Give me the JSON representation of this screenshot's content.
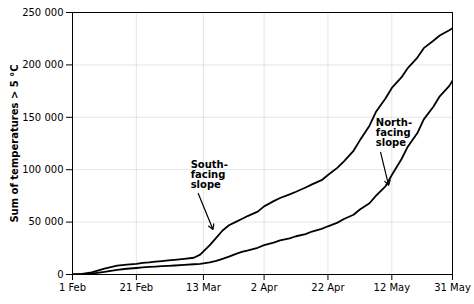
{
  "chart_data": {
    "type": "line",
    "ylabel": "Sum of temperatures > 5 °C",
    "x": [
      0,
      3,
      6,
      10,
      14,
      17,
      20,
      22,
      24,
      26,
      28,
      30,
      32,
      35,
      38,
      40,
      41,
      43,
      45,
      47,
      49,
      51,
      53,
      55,
      58,
      60,
      63,
      65,
      68,
      70,
      73,
      75,
      78,
      80,
      83,
      85,
      88,
      90,
      93,
      95,
      98,
      100,
      103,
      105,
      108,
      110,
      113,
      115,
      118,
      119
    ],
    "series": [
      {
        "color": "#000000",
        "values": [
          0,
          500,
          2000,
          5500,
          8500,
          9500,
          10200,
          11000,
          11500,
          12200,
          12800,
          13400,
          14000,
          15000,
          16000,
          19000,
          22000,
          28000,
          35000,
          42000,
          47000,
          50000,
          53000,
          56000,
          60000,
          65000,
          70000,
          73000,
          76500,
          79000,
          83000,
          86000,
          90000,
          95000,
          102000,
          108000,
          118000,
          128000,
          142000,
          155000,
          168000,
          178000,
          188000,
          197000,
          207000,
          216000,
          223000,
          228000,
          233000,
          235000
        ]
      },
      {
        "color": "#000000",
        "values": [
          0,
          200,
          800,
          2500,
          4500,
          5500,
          6200,
          6800,
          7200,
          7600,
          8000,
          8300,
          8600,
          9200,
          9800,
          10200,
          10600,
          11500,
          13000,
          15000,
          17000,
          19500,
          21500,
          23000,
          25500,
          28000,
          30500,
          32500,
          34500,
          36500,
          38500,
          41000,
          43500,
          46000,
          49500,
          53000,
          57000,
          62000,
          68000,
          75000,
          84000,
          95000,
          110000,
          122000,
          135000,
          148000,
          160000,
          170000,
          180000,
          185000
        ]
      }
    ],
    "xlim": [
      0,
      119
    ],
    "xticks": [
      {
        "value": 0,
        "label": "1 Feb"
      },
      {
        "value": 20,
        "label": "21 Feb"
      },
      {
        "value": 41,
        "label": "13 Mar"
      },
      {
        "value": 60,
        "label": "2 Apr"
      },
      {
        "value": 80,
        "label": "22 Apr"
      },
      {
        "value": 100,
        "label": "12 May"
      },
      {
        "value": 119,
        "label": "31 May"
      }
    ],
    "ylim": [
      0,
      250000
    ],
    "yticks": [
      0,
      {
        "value": 50000,
        "label": "50 000"
      },
      {
        "value": 100000,
        "label": "100 000"
      },
      {
        "value": 150000,
        "label": "150 000"
      },
      {
        "value": 200000,
        "label": "200 000"
      },
      {
        "value": 250000,
        "label": "250 000"
      }
    ],
    "grid": true,
    "annotations": [
      {
        "text": "South-\nfacing\nslope",
        "x": 37,
        "y": 95000,
        "arrow_x": 44,
        "arrow_y": 43000
      },
      {
        "text": "North-\nfacing\nslope",
        "x": 95,
        "y": 135000,
        "arrow_x": 99,
        "arrow_y": 85000
      }
    ]
  }
}
